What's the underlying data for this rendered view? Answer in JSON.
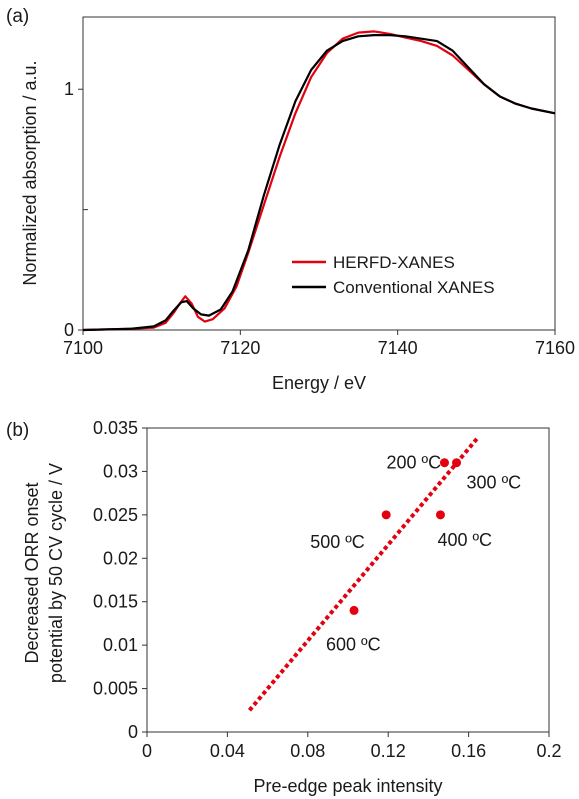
{
  "panels": {
    "a_label": "(a)",
    "b_label": "(b)"
  },
  "chart_data": [
    {
      "type": "line",
      "panel": "(a)",
      "xlabel": "Energy / eV",
      "ylabel": "Normalized absorption / a.u.",
      "xlim": [
        7100,
        7160
      ],
      "ylim": [
        0,
        1.3
      ],
      "xticks": [
        "7100",
        "7120",
        "7140",
        "7160"
      ],
      "yticks": [
        "0",
        "1"
      ],
      "legend_placement": "bottom-right",
      "series": [
        {
          "name": "HERFD-XANES",
          "color": "#e3000f",
          "points": [
            [
              7100,
              0.0
            ],
            [
              7106,
              0.005
            ],
            [
              7109,
              0.01
            ],
            [
              7110.5,
              0.03
            ],
            [
              7111.5,
              0.07
            ],
            [
              7112.3,
              0.11
            ],
            [
              7113,
              0.14
            ],
            [
              7113.8,
              0.11
            ],
            [
              7114.6,
              0.055
            ],
            [
              7115.5,
              0.035
            ],
            [
              7116.5,
              0.045
            ],
            [
              7118,
              0.09
            ],
            [
              7119.5,
              0.18
            ],
            [
              7121,
              0.32
            ],
            [
              7123,
              0.52
            ],
            [
              7125,
              0.72
            ],
            [
              7127,
              0.9
            ],
            [
              7129,
              1.05
            ],
            [
              7131,
              1.15
            ],
            [
              7133,
              1.21
            ],
            [
              7135,
              1.235
            ],
            [
              7137,
              1.24
            ],
            [
              7139,
              1.23
            ],
            [
              7141,
              1.215
            ],
            [
              7143,
              1.2
            ],
            [
              7145,
              1.18
            ],
            [
              7147,
              1.14
            ],
            [
              7149,
              1.08
            ],
            [
              7151,
              1.02
            ],
            [
              7153,
              0.97
            ],
            [
              7155,
              0.94
            ],
            [
              7157,
              0.92
            ],
            [
              7160,
              0.9
            ]
          ]
        },
        {
          "name": "Conventional XANES",
          "color": "#000000",
          "points": [
            [
              7100,
              0.0
            ],
            [
              7106,
              0.005
            ],
            [
              7109,
              0.015
            ],
            [
              7110.5,
              0.04
            ],
            [
              7111.5,
              0.08
            ],
            [
              7112.5,
              0.115
            ],
            [
              7113.2,
              0.12
            ],
            [
              7114,
              0.09
            ],
            [
              7115,
              0.065
            ],
            [
              7116,
              0.06
            ],
            [
              7117.5,
              0.085
            ],
            [
              7119,
              0.16
            ],
            [
              7121,
              0.33
            ],
            [
              7123,
              0.56
            ],
            [
              7125,
              0.77
            ],
            [
              7127,
              0.95
            ],
            [
              7129,
              1.08
            ],
            [
              7131,
              1.16
            ],
            [
              7133,
              1.2
            ],
            [
              7135,
              1.22
            ],
            [
              7137,
              1.225
            ],
            [
              7139,
              1.225
            ],
            [
              7141,
              1.22
            ],
            [
              7143,
              1.21
            ],
            [
              7145,
              1.2
            ],
            [
              7147,
              1.16
            ],
            [
              7149,
              1.09
            ],
            [
              7151,
              1.02
            ],
            [
              7153,
              0.97
            ],
            [
              7155,
              0.94
            ],
            [
              7157,
              0.92
            ],
            [
              7160,
              0.9
            ]
          ]
        }
      ]
    },
    {
      "type": "scatter",
      "panel": "(b)",
      "xlabel": "Pre-edge peak intensity",
      "ylabel_lines": [
        "Decreased ORR onset",
        "potential by 50 CV cycle / V"
      ],
      "xlim": [
        0,
        0.2
      ],
      "ylim": [
        0,
        0.035
      ],
      "xticks": [
        "0",
        "0.04",
        "0.08",
        "0.12",
        "0.16",
        "0.2"
      ],
      "yticks": [
        "0",
        "0.005",
        "0.01",
        "0.015",
        "0.02",
        "0.025",
        "0.03",
        "0.035"
      ],
      "marker_color": "#e3000f",
      "points": [
        {
          "label": "200 ºC",
          "x": 0.148,
          "y": 0.031
        },
        {
          "label": "300 ºC",
          "x": 0.154,
          "y": 0.031
        },
        {
          "label": "500 ºC",
          "x": 0.119,
          "y": 0.025
        },
        {
          "label": "400 ºC",
          "x": 0.146,
          "y": 0.025
        },
        {
          "label": "600 ºC",
          "x": 0.103,
          "y": 0.014
        }
      ],
      "trendline": {
        "style": "dotted",
        "color": "#e3000f",
        "x": [
          0.051,
          0.165
        ],
        "y": [
          0.0025,
          0.034
        ]
      }
    }
  ]
}
